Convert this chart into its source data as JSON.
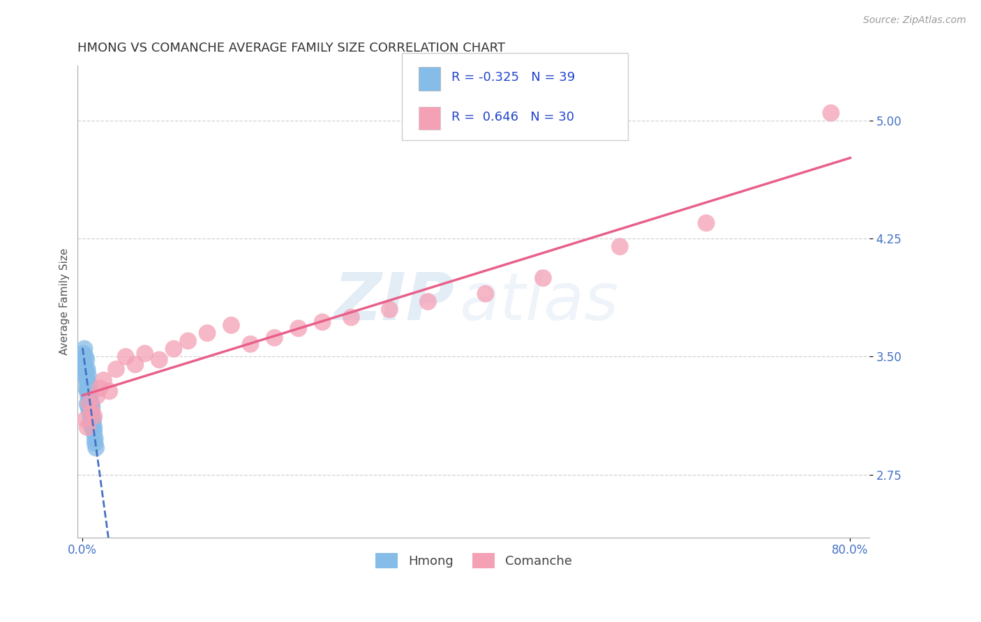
{
  "title": "HMONG VS COMANCHE AVERAGE FAMILY SIZE CORRELATION CHART",
  "source": "Source: ZipAtlas.com",
  "ylabel": "Average Family Size",
  "xlim": [
    -0.005,
    0.82
  ],
  "ylim": [
    2.35,
    5.35
  ],
  "xticks": [
    0.0,
    0.8
  ],
  "xticklabels": [
    "0.0%",
    "80.0%"
  ],
  "yticks": [
    2.75,
    3.5,
    4.25,
    5.0
  ],
  "yticklabels": [
    "2.75",
    "3.50",
    "4.25",
    "5.00"
  ],
  "hmong_color": "#85bce8",
  "comanche_color": "#f4a0b5",
  "hmong_line_color": "#4472c4",
  "comanche_line_color": "#e8608a",
  "hmong_R": -0.325,
  "hmong_N": 39,
  "comanche_R": 0.646,
  "comanche_N": 30,
  "hmong_x": [
    0.001,
    0.001,
    0.002,
    0.002,
    0.003,
    0.003,
    0.003,
    0.004,
    0.004,
    0.004,
    0.004,
    0.005,
    0.005,
    0.005,
    0.005,
    0.006,
    0.006,
    0.006,
    0.006,
    0.007,
    0.007,
    0.007,
    0.007,
    0.008,
    0.008,
    0.008,
    0.009,
    0.009,
    0.009,
    0.01,
    0.01,
    0.01,
    0.011,
    0.011,
    0.012,
    0.012,
    0.013,
    0.013,
    0.014
  ],
  "hmong_y": [
    3.48,
    3.52,
    3.55,
    3.45,
    3.38,
    3.42,
    3.5,
    3.35,
    3.4,
    3.48,
    3.3,
    3.35,
    3.28,
    3.42,
    3.2,
    3.3,
    3.25,
    3.38,
    3.18,
    3.22,
    3.28,
    3.32,
    3.15,
    3.2,
    3.25,
    3.1,
    3.15,
    3.2,
    3.08,
    3.12,
    3.18,
    3.05,
    3.1,
    3.08,
    3.05,
    3.02,
    2.98,
    2.95,
    2.92
  ],
  "comanche_x": [
    0.003,
    0.005,
    0.007,
    0.01,
    0.012,
    0.015,
    0.018,
    0.022,
    0.028,
    0.035,
    0.045,
    0.055,
    0.065,
    0.08,
    0.095,
    0.11,
    0.13,
    0.155,
    0.175,
    0.2,
    0.225,
    0.25,
    0.28,
    0.32,
    0.36,
    0.42,
    0.48,
    0.56,
    0.65,
    0.78
  ],
  "comanche_y": [
    3.1,
    3.05,
    3.2,
    3.15,
    3.12,
    3.25,
    3.3,
    3.35,
    3.28,
    3.42,
    3.5,
    3.45,
    3.52,
    3.48,
    3.55,
    3.6,
    3.65,
    3.7,
    3.58,
    3.62,
    3.68,
    3.72,
    3.75,
    3.8,
    3.85,
    3.9,
    4.0,
    4.2,
    4.35,
    5.05
  ],
  "title_fontsize": 13,
  "axis_label_fontsize": 11,
  "tick_fontsize": 12,
  "source_fontsize": 10,
  "tick_color": "#4472c4",
  "background_color": "#ffffff",
  "grid_color": "#c8c8c8"
}
